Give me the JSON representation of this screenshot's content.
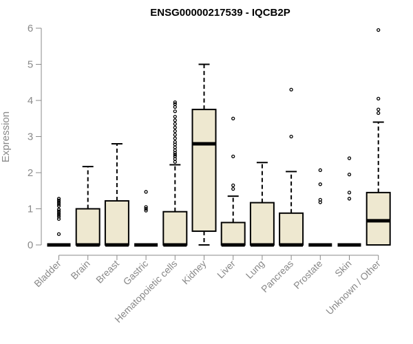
{
  "chart_data": {
    "type": "box",
    "title": "ENSG00000217539 - IQCB2P",
    "ylabel": "Expression",
    "xlabel": "",
    "ylim": [
      0,
      6
    ],
    "yticks": [
      0,
      1,
      2,
      3,
      4,
      5,
      6
    ],
    "grid": false,
    "box_fill": "#EEE8D0",
    "categories": [
      "Bladder",
      "Brain",
      "Breast",
      "Gastric",
      "Hematopoietic cells",
      "Kidney",
      "Liver",
      "Lung",
      "Pancreas",
      "Prostate",
      "Skin",
      "Unknown / Other"
    ],
    "boxes": [
      {
        "q1": 0,
        "median": 0,
        "q3": 0,
        "whisker_low": 0,
        "whisker_high": 0,
        "outliers": [
          0.3,
          0.72,
          0.78,
          0.83,
          0.88,
          0.93,
          0.98,
          1.08,
          1.13,
          1.18,
          1.23,
          1.28
        ]
      },
      {
        "q1": 0,
        "median": 0,
        "q3": 1.0,
        "whisker_low": 0,
        "whisker_high": 2.17,
        "outliers": []
      },
      {
        "q1": 0,
        "median": 0,
        "q3": 1.22,
        "whisker_low": 0,
        "whisker_high": 2.8,
        "outliers": []
      },
      {
        "q1": 0,
        "median": 0,
        "q3": 0,
        "whisker_low": 0,
        "whisker_high": 0,
        "outliers": [
          0.95,
          1.0,
          1.05,
          1.47
        ]
      },
      {
        "q1": 0,
        "median": 0,
        "q3": 0.92,
        "whisker_low": 0,
        "whisker_high": 2.22,
        "outliers": [
          2.3,
          2.38,
          2.45,
          2.5,
          2.55,
          2.62,
          2.7,
          2.78,
          2.85,
          2.95,
          3.05,
          3.15,
          3.25,
          3.35,
          3.45,
          3.55,
          3.7,
          3.82,
          3.9,
          3.95
        ]
      },
      {
        "q1": 0.38,
        "median": 2.8,
        "q3": 3.75,
        "whisker_low": 0,
        "whisker_high": 5.0,
        "outliers": []
      },
      {
        "q1": 0,
        "median": 0,
        "q3": 0.62,
        "whisker_low": 0,
        "whisker_high": 1.35,
        "outliers": [
          1.55,
          1.65,
          2.45,
          3.5
        ]
      },
      {
        "q1": 0,
        "median": 0,
        "q3": 1.17,
        "whisker_low": 0,
        "whisker_high": 2.28,
        "outliers": []
      },
      {
        "q1": 0,
        "median": 0,
        "q3": 0.88,
        "whisker_low": 0,
        "whisker_high": 2.03,
        "outliers": [
          3.0,
          4.3
        ]
      },
      {
        "q1": 0,
        "median": 0,
        "q3": 0,
        "whisker_low": 0,
        "whisker_high": 0,
        "outliers": [
          1.18,
          1.25,
          1.68,
          2.07
        ]
      },
      {
        "q1": 0,
        "median": 0,
        "q3": 0,
        "whisker_low": 0,
        "whisker_high": 0,
        "outliers": [
          1.28,
          1.45,
          1.95,
          2.4
        ]
      },
      {
        "q1": 0,
        "median": 0.67,
        "q3": 1.45,
        "whisker_low": 0,
        "whisker_high": 3.4,
        "outliers": [
          3.65,
          3.75,
          4.05,
          5.95
        ]
      }
    ]
  }
}
